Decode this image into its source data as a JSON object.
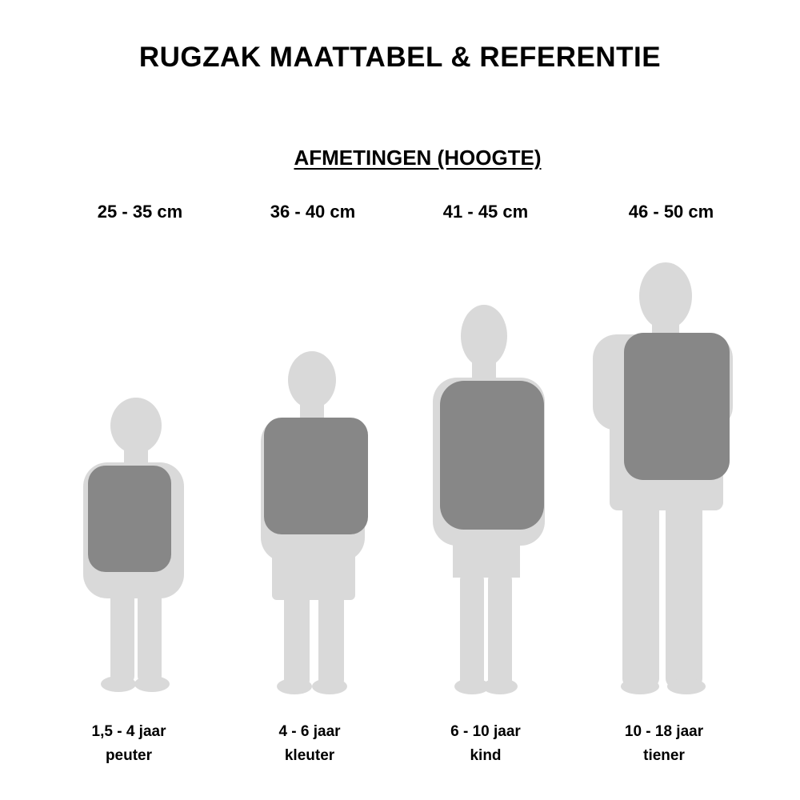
{
  "title": "RUGZAK MAATTABEL & REFERENTIE",
  "subtitle": "AFMETINGEN (HOOGTE)",
  "colors": {
    "silhouette": "#d9d9d9",
    "backpack": "#878787",
    "text": "#000000"
  },
  "columns": [
    {
      "size": "25 - 35 cm",
      "age": "1,5 - 4 jaar",
      "group": "peuter"
    },
    {
      "size": "36 - 40 cm",
      "age": "4 - 6 jaar",
      "group": "kleuter"
    },
    {
      "size": "41 - 45 cm",
      "age": "6 - 10 jaar",
      "group": "kind"
    },
    {
      "size": "46 - 50 cm",
      "age": "10 - 18 jaar",
      "group": "tiener"
    }
  ]
}
